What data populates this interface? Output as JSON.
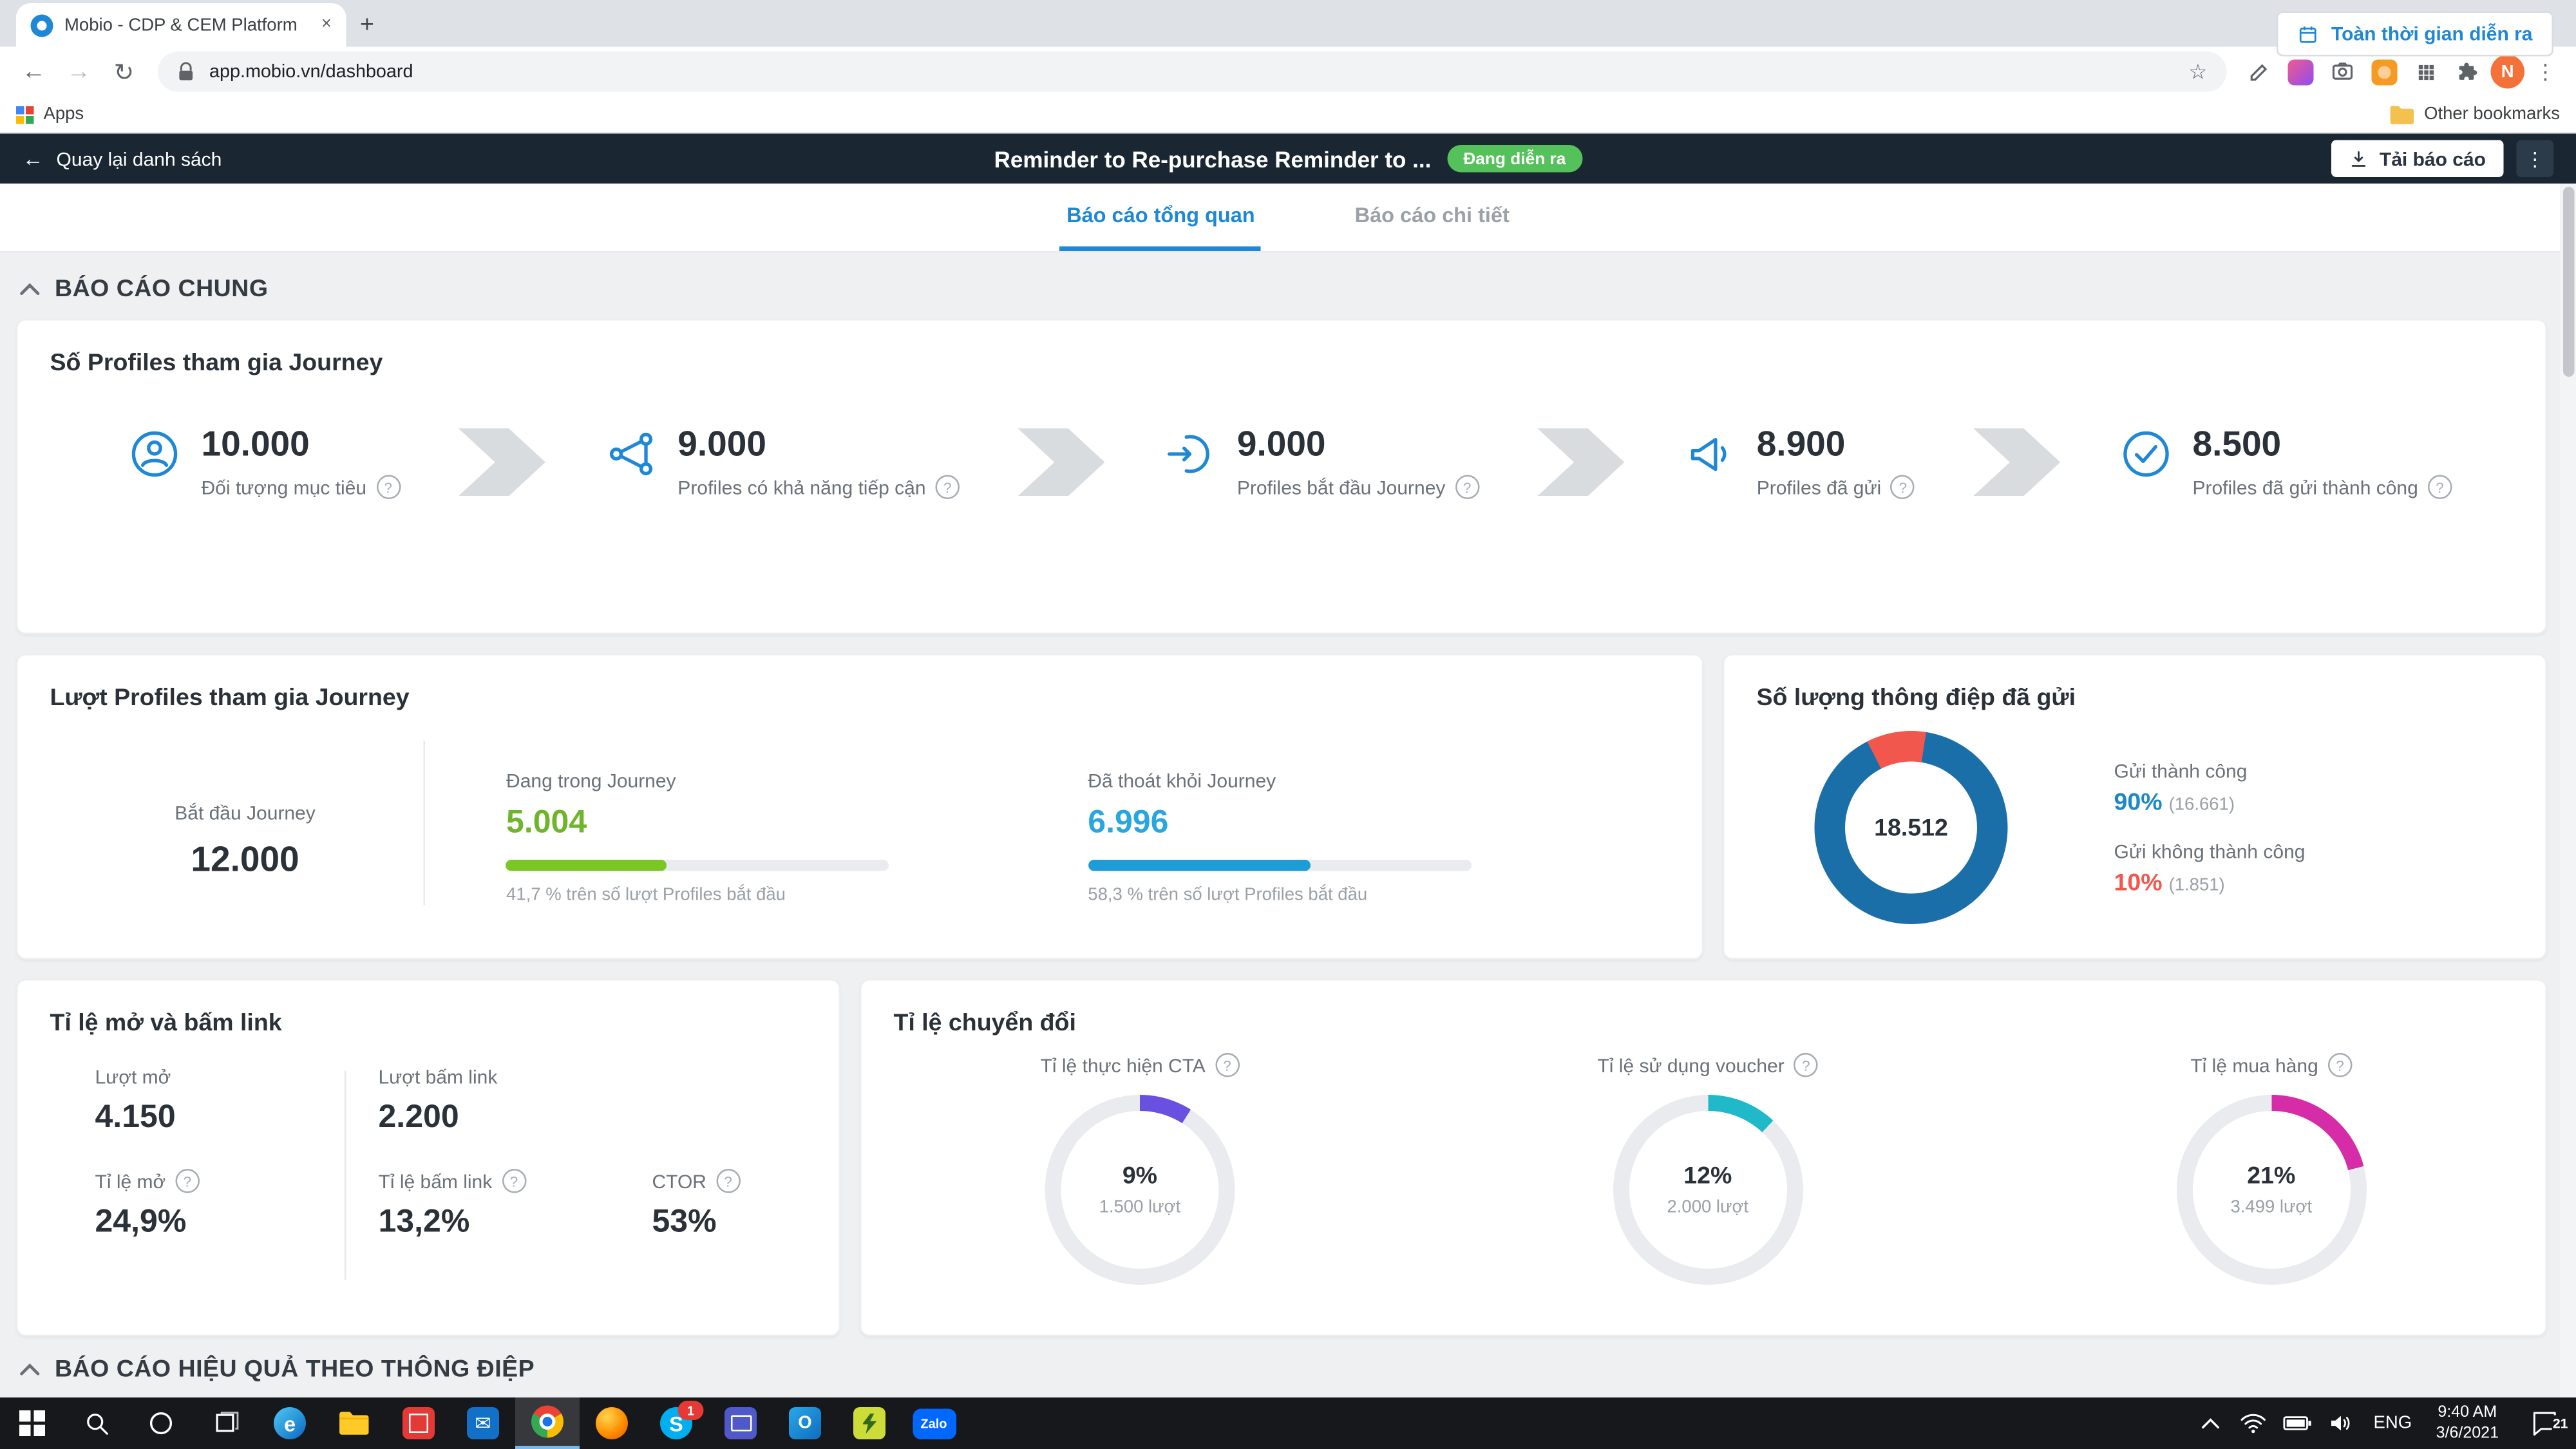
{
  "browser": {
    "tab_title": "Mobio - CDP & CEM Platform",
    "url": "app.mobio.vn/dashboard",
    "apps_label": "Apps",
    "other_bookmarks_label": "Other bookmarks",
    "profile_initial": "N"
  },
  "app_header": {
    "back_label": "Quay lại danh sách",
    "title": "Reminder to Re-purchase Reminder to ...",
    "status_badge": "Đang diễn ra",
    "download_label": "Tải báo cáo"
  },
  "nav_tabs": {
    "overview": "Báo cáo tổng quan",
    "detail": "Báo cáo chi tiết",
    "time_range": "Toàn thời gian diễn ra"
  },
  "sections": {
    "general": "BÁO CÁO CHUNG",
    "message_report": "BÁO CÁO HIỆU QUẢ THEO THÔNG ĐIỆP"
  },
  "funnel_card": {
    "title": "Số Profiles tham gia Journey",
    "steps": [
      {
        "value": "10.000",
        "label": "Đối tượng mục tiêu"
      },
      {
        "value": "9.000",
        "label": "Profiles có khả năng tiếp cận"
      },
      {
        "value": "9.000",
        "label": "Profiles bắt đầu Journey"
      },
      {
        "value": "8.900",
        "label": "Profiles đã gửi"
      },
      {
        "value": "8.500",
        "label": "Profiles đã gửi thành công"
      }
    ]
  },
  "journey_card": {
    "title": "Lượt Profiles tham gia Journey",
    "start_label": "Bắt đầu Journey",
    "start_value": "12.000",
    "in_journey": {
      "label": "Đang trong Journey",
      "value": "5.004",
      "percent": 41.7,
      "caption": "41,7 % trên số lượt Profiles bắt đầu"
    },
    "exited": {
      "label": "Đã thoát khỏi Journey",
      "value": "6.996",
      "percent": 58.3,
      "caption": "58,3 % trên số lượt Profiles bắt đầu"
    }
  },
  "messages_card": {
    "title": "Số lượng thông điệp đã gửi",
    "total": "18.512",
    "success_label": "Gửi thành công",
    "success_percent": "90%",
    "success_count": "(16.661)",
    "fail_label": "Gửi không thành công",
    "fail_percent": "10%",
    "fail_count": "(1.851)",
    "pie": {
      "start": -27,
      "slices": [
        {
          "value": 10,
          "color": "#f2574d"
        },
        {
          "value": 90,
          "color": "#1b6fa8"
        }
      ]
    }
  },
  "open_click_card": {
    "title": "Tỉ lệ mở và bấm link",
    "opens_label": "Lượt mở",
    "opens_value": "4.150",
    "clicks_label": "Lượt bấm link",
    "clicks_value": "2.200",
    "open_rate_label": "Tỉ lệ mở",
    "open_rate_value": "24,9%",
    "click_rate_label": "Tỉ lệ bấm link",
    "click_rate_value": "13,2%",
    "ctor_label": "CTOR",
    "ctor_value": "53%"
  },
  "conversion_card": {
    "title": "Tỉ lệ chuyển đổi",
    "gauges": [
      {
        "label": "Tỉ lệ thực hiện CTA",
        "percent": "9%",
        "caption": "1.500 lượt",
        "value": 9,
        "color": "#6a50e0"
      },
      {
        "label": "Tỉ lệ sử dụng voucher",
        "percent": "12%",
        "caption": "2.000 lượt",
        "value": 12,
        "color": "#1fb9c9"
      },
      {
        "label": "Tỉ lệ mua hàng",
        "percent": "21%",
        "caption": "3.499 lượt",
        "value": 21,
        "color": "#d62ca8"
      }
    ]
  },
  "taskbar": {
    "time": "9:40 AM",
    "date": "3/6/2021",
    "language": "ENG",
    "skype_badge": "1",
    "notification_badge": "21",
    "zalo_label": "Zalo"
  },
  "colors": {
    "accent_blue": "#1f88d6",
    "green": "#7cc624",
    "light_blue": "#29a6de",
    "red": "#f2574d",
    "donut_blue": "#1b6fa8"
  },
  "chart_data": [
    {
      "type": "bar",
      "title": "Số Profiles tham gia Journey (funnel)",
      "categories": [
        "Đối tượng mục tiêu",
        "Profiles có khả năng tiếp cận",
        "Profiles bắt đầu Journey",
        "Profiles đã gửi",
        "Profiles đã gửi thành công"
      ],
      "values": [
        10000,
        9000,
        9000,
        8900,
        8500
      ]
    },
    {
      "type": "bar",
      "title": "Lượt Profiles tham gia Journey",
      "categories": [
        "Bắt đầu Journey",
        "Đang trong Journey",
        "Đã thoát khỏi Journey"
      ],
      "values": [
        12000,
        5004,
        6996
      ],
      "percent_of_start": [
        100,
        41.7,
        58.3
      ]
    },
    {
      "type": "pie",
      "title": "Số lượng thông điệp đã gửi",
      "total": 18512,
      "categories": [
        "Gửi thành công",
        "Gửi không thành công"
      ],
      "values": [
        16661,
        1851
      ],
      "percents": [
        90,
        10
      ]
    },
    {
      "type": "pie",
      "title": "Tỉ lệ chuyển đổi",
      "categories": [
        "Tỉ lệ thực hiện CTA",
        "Tỉ lệ sử dụng voucher",
        "Tỉ lệ mua hàng"
      ],
      "percents": [
        9,
        12,
        21
      ],
      "counts": [
        1500,
        2000,
        3499
      ]
    }
  ]
}
